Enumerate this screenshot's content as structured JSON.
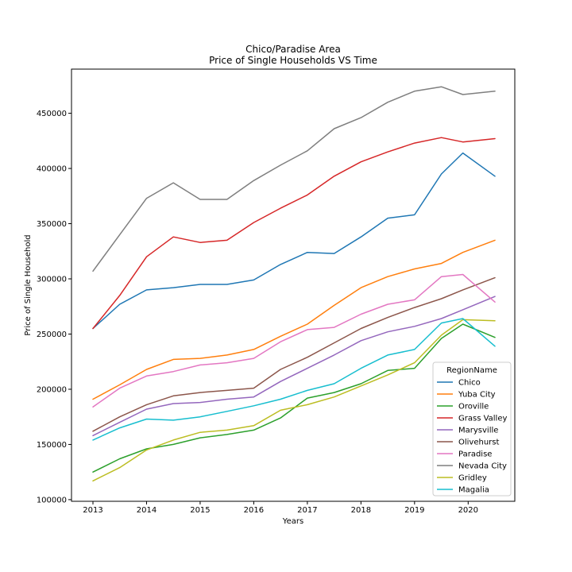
{
  "chart_data": {
    "type": "line",
    "title": "Chico/Paradise Area",
    "subtitle": "Price of Single Households VS Time",
    "xlabel": "Years",
    "ylabel": "Price of Single Household",
    "xlim": [
      2012.6,
      2020.87
    ],
    "ylim": [
      98500,
      490000
    ],
    "x_ticks": [
      2013,
      2014,
      2015,
      2016,
      2017,
      2018,
      2019,
      2020
    ],
    "x_tick_labels": [
      "2013",
      "2014",
      "2015",
      "2016",
      "2017",
      "2018",
      "2019",
      "2020"
    ],
    "y_ticks": [
      100000,
      150000,
      200000,
      250000,
      300000,
      350000,
      400000,
      450000
    ],
    "y_tick_labels": [
      "100000",
      "150000",
      "200000",
      "250000",
      "300000",
      "350000",
      "400000",
      "450000"
    ],
    "grid": false,
    "legend_title": "RegionName",
    "legend_position": "lower-right",
    "x": [
      2013.0,
      2013.5,
      2014.0,
      2014.5,
      2015.0,
      2015.5,
      2016.0,
      2016.5,
      2017.0,
      2017.5,
      2018.0,
      2018.5,
      2019.0,
      2019.5,
      2019.9,
      2020.5
    ],
    "series": [
      {
        "name": "Chico",
        "color": "#1f77b4",
        "values": [
          255000,
          277000,
          290000,
          292000,
          295000,
          295000,
          299000,
          313000,
          324000,
          323000,
          338000,
          355000,
          358000,
          395000,
          414000,
          393000
        ]
      },
      {
        "name": "Yuba City",
        "color": "#ff7f0e",
        "values": [
          191000,
          204000,
          218000,
          227000,
          228000,
          231000,
          236000,
          248000,
          259000,
          276000,
          292000,
          302000,
          309000,
          314000,
          324000,
          335000
        ]
      },
      {
        "name": "Oroville",
        "color": "#2ca02c",
        "values": [
          125000,
          137000,
          146000,
          150000,
          156000,
          159000,
          163000,
          174000,
          192000,
          197000,
          205000,
          217000,
          219000,
          246000,
          259000,
          247000
        ]
      },
      {
        "name": "Grass Valley",
        "color": "#d62728",
        "values": [
          255000,
          285000,
          320000,
          338000,
          333000,
          335000,
          351000,
          364000,
          376000,
          393000,
          406000,
          415000,
          423000,
          428000,
          424000,
          427000
        ]
      },
      {
        "name": "Marysville",
        "color": "#9467bd",
        "values": [
          158000,
          170000,
          182000,
          187000,
          188000,
          191000,
          193000,
          207000,
          219000,
          231000,
          244000,
          252000,
          257000,
          264000,
          272000,
          284000
        ]
      },
      {
        "name": "Olivehurst",
        "color": "#8c564b",
        "values": [
          162000,
          175000,
          186000,
          194000,
          197000,
          199000,
          201000,
          218000,
          229000,
          242000,
          255000,
          265000,
          274000,
          282000,
          290000,
          301000
        ]
      },
      {
        "name": "Paradise",
        "color": "#e377c2",
        "values": [
          184000,
          201000,
          212000,
          216000,
          222000,
          224000,
          228000,
          243000,
          254000,
          256000,
          268000,
          277000,
          281000,
          302000,
          304000,
          279000
        ]
      },
      {
        "name": "Nevada City",
        "color": "#7f7f7f",
        "values": [
          307000,
          340000,
          373000,
          387000,
          372000,
          372000,
          389000,
          403000,
          416000,
          436000,
          446000,
          460000,
          470000,
          474000,
          467000,
          470000
        ]
      },
      {
        "name": "Gridley",
        "color": "#bcbd22",
        "values": [
          117000,
          129000,
          145000,
          154000,
          161000,
          163000,
          167000,
          181000,
          186000,
          193000,
          203000,
          213000,
          224000,
          249000,
          263000,
          262000
        ]
      },
      {
        "name": "Magalia",
        "color": "#17becf",
        "values": [
          154000,
          165000,
          173000,
          172000,
          175000,
          180000,
          185000,
          191000,
          199000,
          205000,
          219000,
          231000,
          236000,
          260000,
          264000,
          239000
        ]
      }
    ]
  }
}
